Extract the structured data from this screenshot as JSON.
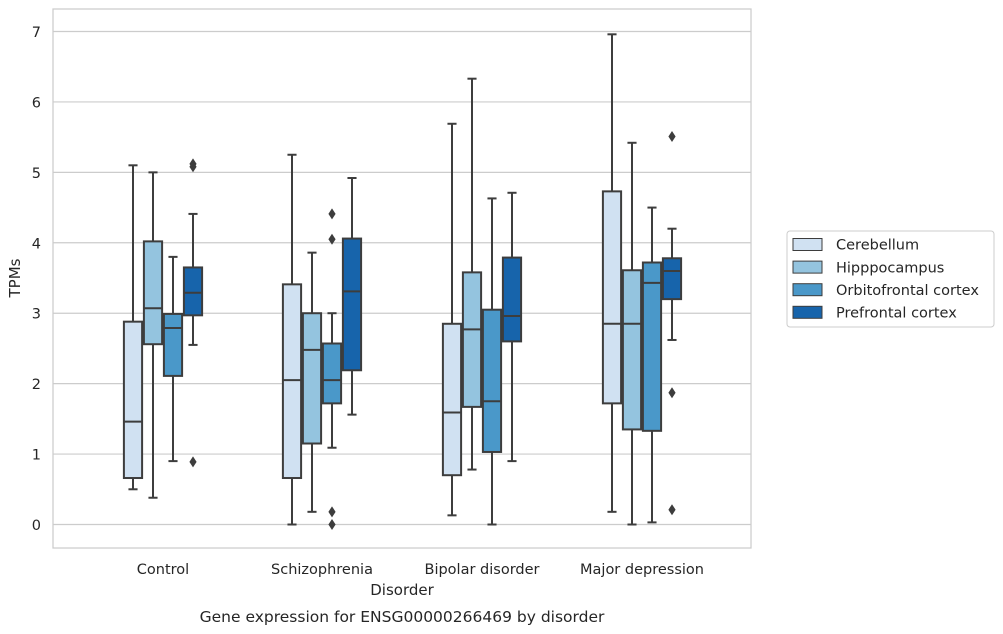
{
  "caption": "Gene expression for ENSG00000266469 by disorder",
  "chart_data": {
    "type": "box",
    "xlabel": "Disorder",
    "ylabel": "TPMs",
    "ylim": [
      -0.33,
      7.33
    ],
    "yticks": [
      0,
      1,
      2,
      3,
      4,
      5,
      6,
      7
    ],
    "grid": true,
    "legend_position": "right",
    "categories": [
      "Control",
      "Schizophrenia",
      "Bipolar disorder",
      "Major depression"
    ],
    "series": [
      {
        "name": "Cerebellum",
        "color": "#d0e1f2",
        "boxes": [
          {
            "whisker_low": 0.5,
            "q1": 0.66,
            "median": 1.46,
            "q3": 2.88,
            "whisker_high": 5.1,
            "outliers": []
          },
          {
            "whisker_low": 0.0,
            "q1": 0.66,
            "median": 2.05,
            "q3": 3.41,
            "whisker_high": 5.25,
            "outliers": []
          },
          {
            "whisker_low": 0.13,
            "q1": 0.7,
            "median": 1.59,
            "q3": 2.85,
            "whisker_high": 5.69,
            "outliers": []
          },
          {
            "whisker_low": 0.18,
            "q1": 1.72,
            "median": 2.85,
            "q3": 4.73,
            "whisker_high": 6.96,
            "outliers": []
          }
        ]
      },
      {
        "name": "Hipppocampus",
        "color": "#94c4df",
        "boxes": [
          {
            "whisker_low": 0.38,
            "q1": 2.56,
            "median": 3.07,
            "q3": 4.02,
            "whisker_high": 5.0,
            "outliers": []
          },
          {
            "whisker_low": 0.18,
            "q1": 1.15,
            "median": 2.48,
            "q3": 3.0,
            "whisker_high": 3.86,
            "outliers": []
          },
          {
            "whisker_low": 0.78,
            "q1": 1.67,
            "median": 2.77,
            "q3": 3.58,
            "whisker_high": 6.33,
            "outliers": []
          },
          {
            "whisker_low": 0.0,
            "q1": 1.35,
            "median": 2.85,
            "q3": 3.61,
            "whisker_high": 5.42,
            "outliers": []
          }
        ]
      },
      {
        "name": "Orbitofrontal cortex",
        "color": "#4a98c9",
        "boxes": [
          {
            "whisker_low": 0.9,
            "q1": 2.11,
            "median": 2.79,
            "q3": 2.99,
            "whisker_high": 3.8,
            "outliers": []
          },
          {
            "whisker_low": 1.09,
            "q1": 1.72,
            "median": 2.05,
            "q3": 2.57,
            "whisker_high": 3.0,
            "outliers": [
              4.41,
              4.05,
              0.18,
              0.0
            ]
          },
          {
            "whisker_low": 0.0,
            "q1": 1.03,
            "median": 1.75,
            "q3": 3.05,
            "whisker_high": 4.63,
            "outliers": []
          },
          {
            "whisker_low": 0.03,
            "q1": 1.33,
            "median": 3.43,
            "q3": 3.72,
            "whisker_high": 4.5,
            "outliers": []
          }
        ]
      },
      {
        "name": "Prefrontal cortex",
        "color": "#1764ab",
        "boxes": [
          {
            "whisker_low": 2.55,
            "q1": 2.97,
            "median": 3.29,
            "q3": 3.65,
            "whisker_high": 4.41,
            "outliers": [
              5.12,
              5.08,
              0.89
            ]
          },
          {
            "whisker_low": 1.56,
            "q1": 2.19,
            "median": 3.31,
            "q3": 4.06,
            "whisker_high": 4.92,
            "outliers": []
          },
          {
            "whisker_low": 0.9,
            "q1": 2.6,
            "median": 2.96,
            "q3": 3.79,
            "whisker_high": 4.71,
            "outliers": []
          },
          {
            "whisker_low": 2.62,
            "q1": 3.2,
            "median": 3.6,
            "q3": 3.78,
            "whisker_high": 4.2,
            "outliers": [
              5.51,
              1.87,
              0.21
            ]
          }
        ]
      }
    ]
  }
}
